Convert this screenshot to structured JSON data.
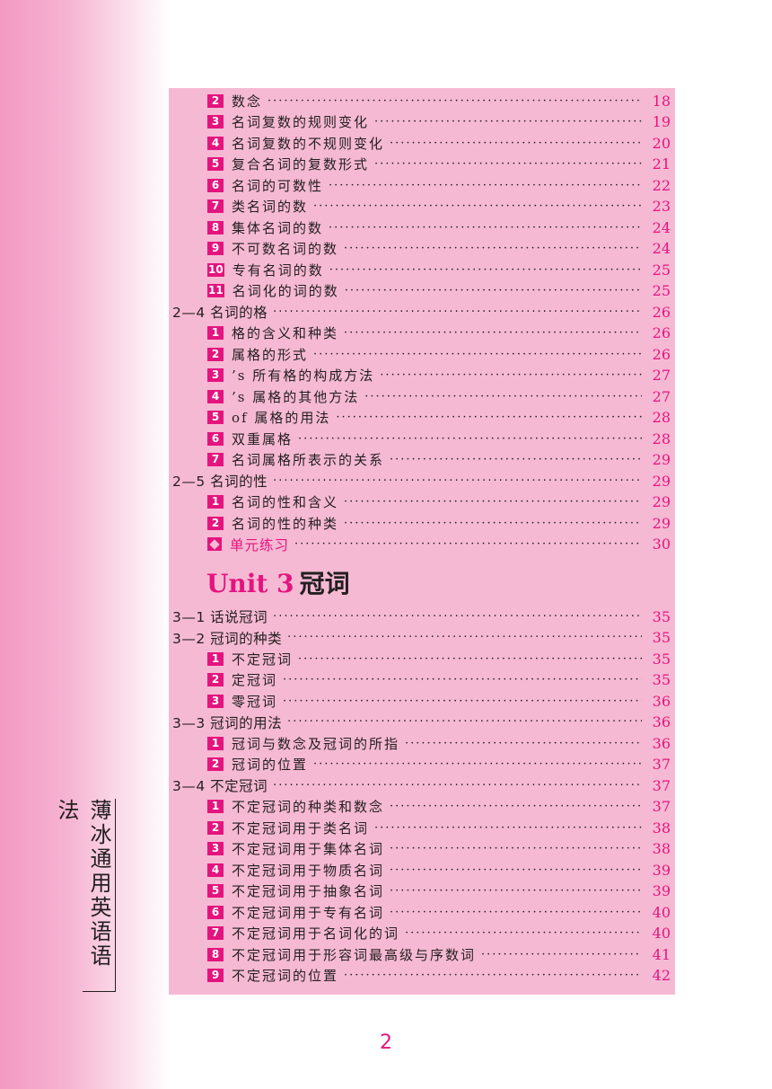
{
  "side_title": "薄冰通用英语语法",
  "page_number": "2",
  "unit_heading": {
    "word": "Unit 3",
    "name": "冠词"
  },
  "toc_top": [
    {
      "level": 2,
      "num": "2",
      "label": "数念",
      "page": "18"
    },
    {
      "level": 2,
      "num": "3",
      "label": "名词复数的规则变化",
      "page": "19"
    },
    {
      "level": 2,
      "num": "4",
      "label": "名词复数的不规则变化",
      "page": "20"
    },
    {
      "level": 2,
      "num": "5",
      "label": "复合名词的复数形式",
      "page": "21"
    },
    {
      "level": 2,
      "num": "6",
      "label": "名词的可数性",
      "page": "22"
    },
    {
      "level": 2,
      "num": "7",
      "label": "类名词的数",
      "page": "23"
    },
    {
      "level": 2,
      "num": "8",
      "label": "集体名词的数",
      "page": "24"
    },
    {
      "level": 2,
      "num": "9",
      "label": "不可数名词的数",
      "page": "24"
    },
    {
      "level": 2,
      "num": "10",
      "label": "专有名词的数",
      "page": "25"
    },
    {
      "level": 2,
      "num": "11",
      "label": "名词化的词的数",
      "page": "25"
    },
    {
      "level": 1,
      "num": "",
      "label": "2—4  名词的格",
      "page": "26"
    },
    {
      "level": 2,
      "num": "1",
      "label": "格的含义和种类",
      "page": "26"
    },
    {
      "level": 2,
      "num": "2",
      "label": "属格的形式",
      "page": "26"
    },
    {
      "level": 2,
      "num": "3",
      "label": "’s 所有格的构成方法",
      "page": "27"
    },
    {
      "level": 2,
      "num": "4",
      "label": "’s 属格的其他方法",
      "page": "27"
    },
    {
      "level": 2,
      "num": "5",
      "label": "of 属格的用法",
      "page": "28"
    },
    {
      "level": 2,
      "num": "6",
      "label": "双重属格",
      "page": "28"
    },
    {
      "level": 2,
      "num": "7",
      "label": "名词属格所表示的关系",
      "page": "29"
    },
    {
      "level": 1,
      "num": "",
      "label": "2—5  名词的性",
      "page": "29"
    },
    {
      "level": 2,
      "num": "1",
      "label": "名词的性和含义",
      "page": "29"
    },
    {
      "level": 2,
      "num": "2",
      "label": "名词的性的种类",
      "page": "29"
    },
    {
      "level": 3,
      "num": "",
      "label": "单元练习",
      "page": "30"
    }
  ],
  "toc_bottom": [
    {
      "level": 1,
      "num": "",
      "label": "3—1  话说冠词",
      "page": "35"
    },
    {
      "level": 1,
      "num": "",
      "label": "3—2  冠词的种类",
      "page": "35"
    },
    {
      "level": 2,
      "num": "1",
      "label": "不定冠词",
      "page": "35"
    },
    {
      "level": 2,
      "num": "2",
      "label": "定冠词",
      "page": "35"
    },
    {
      "level": 2,
      "num": "3",
      "label": "零冠词",
      "page": "36"
    },
    {
      "level": 1,
      "num": "",
      "label": "3—3  冠词的用法",
      "page": "36"
    },
    {
      "level": 2,
      "num": "1",
      "label": "冠词与数念及冠词的所指",
      "page": "36"
    },
    {
      "level": 2,
      "num": "2",
      "label": "冠词的位置",
      "page": "37"
    },
    {
      "level": 1,
      "num": "",
      "label": "3—4  不定冠词",
      "page": "37"
    },
    {
      "level": 2,
      "num": "1",
      "label": "不定冠词的种类和数念",
      "page": "37"
    },
    {
      "level": 2,
      "num": "2",
      "label": "不定冠词用于类名词",
      "page": "38"
    },
    {
      "level": 2,
      "num": "3",
      "label": "不定冠词用于集体名词",
      "page": "38"
    },
    {
      "level": 2,
      "num": "4",
      "label": "不定冠词用于物质名词",
      "page": "39"
    },
    {
      "level": 2,
      "num": "5",
      "label": "不定冠词用于抽象名词",
      "page": "39"
    },
    {
      "level": 2,
      "num": "6",
      "label": "不定冠词用于专有名词",
      "page": "40"
    },
    {
      "level": 2,
      "num": "7",
      "label": "不定冠词用于名词化的词",
      "page": "40"
    },
    {
      "level": 2,
      "num": "8",
      "label": "不定冠词用于形容词最高级与序数词",
      "page": "41"
    },
    {
      "level": 2,
      "num": "9",
      "label": "不定冠词的位置",
      "page": "42"
    }
  ]
}
